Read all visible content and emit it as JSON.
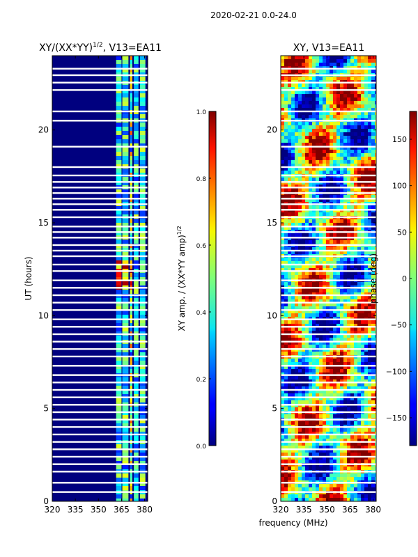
{
  "chart_data": {
    "type": "heatmap",
    "suptitle": "2020-02-21 0.0-24.0",
    "xlabel": "frequency (MHz)",
    "x_ticks": [
      320,
      335,
      350,
      365,
      380
    ],
    "xlim": [
      320,
      382
    ],
    "y_ticks": [
      0,
      5,
      10,
      15,
      20
    ],
    "ylim": [
      0,
      24
    ],
    "panels": [
      {
        "title_main": "XY/(XX*YY)",
        "title_sup": "1/2",
        "title_tail": ", V13=EA11",
        "ylabel": "UT (hours)",
        "colorbar": {
          "label_main": "XY amp. / (XX*YY amp)",
          "label_sup": "1/2",
          "range": [
            0.0,
            1.0
          ],
          "tick_labels": [
            "0.0",
            "0.2",
            "0.4",
            "0.6",
            "0.8",
            "1.0"
          ],
          "tick_values": [
            0.0,
            0.2,
            0.4,
            0.6,
            0.8,
            1.0
          ]
        }
      },
      {
        "title_main": "XY, V13=EA11",
        "colorbar": {
          "label_main": "phase (deg)",
          "range": [
            -180,
            180
          ],
          "tick_labels": [
            "−150",
            "−100",
            "−50",
            "0",
            "50",
            "100",
            "150"
          ],
          "tick_values": [
            -150,
            -100,
            -50,
            0,
            50,
            100,
            150
          ]
        }
      }
    ],
    "colormap": "jet",
    "gap_rows_hours": [
      23.3,
      22.95,
      22.55,
      22.15,
      21.0,
      20.5,
      19.1,
      18.0,
      17.55,
      17.2,
      16.9,
      16.6,
      16.3,
      16.0,
      15.7,
      15.3,
      14.8,
      14.5,
      14.2,
      13.8,
      13.5,
      13.2,
      12.75,
      12.4,
      11.9,
      11.5,
      11.1,
      10.7,
      10.3,
      9.8,
      9.4,
      9.0,
      8.6,
      8.2,
      7.8,
      7.3,
      6.8,
      6.4,
      6.0,
      5.6,
      5.2,
      4.8,
      4.4,
      4.0,
      3.6,
      3.2,
      2.8,
      2.4,
      2.0,
      1.6,
      1.0,
      0.5
    ]
  }
}
